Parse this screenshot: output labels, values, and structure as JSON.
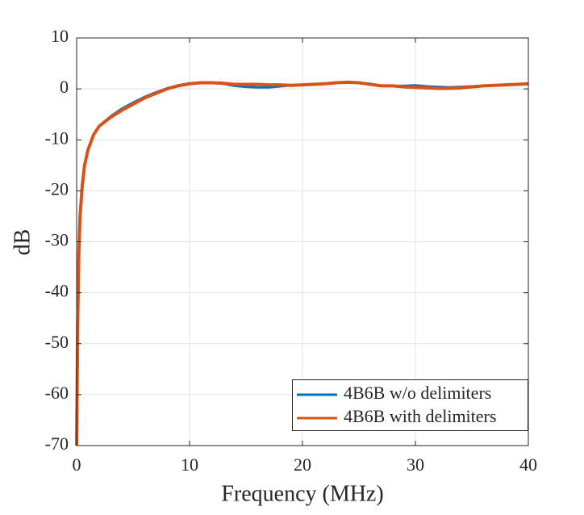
{
  "chart_data": {
    "type": "line",
    "x_label": "Frequency (MHz)",
    "y_label": "dB",
    "x": [
      0,
      0.1,
      0.2,
      0.3,
      0.5,
      0.7,
      1,
      1.5,
      2,
      3,
      4,
      5,
      6,
      7,
      8,
      9,
      10,
      11,
      12,
      13,
      14,
      15,
      16,
      17,
      18,
      19,
      20,
      21,
      22,
      23,
      24,
      25,
      26,
      27,
      28,
      29,
      30,
      31,
      32,
      33,
      34,
      35,
      36,
      37,
      38,
      39,
      40
    ],
    "series": [
      {
        "name": "4B6B w/o delimiters",
        "color": "#0072BD",
        "values": [
          -70,
          -45,
          -32,
          -25,
          -19,
          -15,
          -12,
          -9,
          -7.3,
          -5.4,
          -3.9,
          -2.7,
          -1.6,
          -0.7,
          0.1,
          0.7,
          1.1,
          1.2,
          1.2,
          1.0,
          0.6,
          0.4,
          0.3,
          0.3,
          0.5,
          0.7,
          0.8,
          0.9,
          1.0,
          1.2,
          1.3,
          1.2,
          1.0,
          0.6,
          0.6,
          0.6,
          0.7,
          0.5,
          0.4,
          0.3,
          0.4,
          0.5,
          0.6,
          0.7,
          0.8,
          0.9,
          1.0
        ]
      },
      {
        "name": "4B6B with delimiters",
        "color": "#D95319",
        "values": [
          -70,
          -45,
          -32,
          -25,
          -19,
          -15,
          -12,
          -9,
          -7.3,
          -5.6,
          -4.2,
          -3.0,
          -1.8,
          -0.9,
          0,
          0.6,
          1.0,
          1.2,
          1.2,
          1.1,
          0.9,
          0.9,
          0.9,
          0.8,
          0.8,
          0.7,
          0.8,
          0.9,
          1.0,
          1.2,
          1.3,
          1.2,
          0.9,
          0.6,
          0.6,
          0.4,
          0.3,
          0.2,
          0.1,
          0.1,
          0.2,
          0.4,
          0.6,
          0.7,
          0.8,
          0.9,
          1.0
        ]
      }
    ],
    "xlim": [
      0,
      40
    ],
    "ylim": [
      -70,
      10
    ],
    "xticks": [
      0,
      10,
      20,
      30,
      40
    ],
    "yticks": [
      -70,
      -60,
      -50,
      -40,
      -30,
      -20,
      -10,
      0,
      10
    ],
    "grid": true,
    "legend": "lower-right"
  }
}
